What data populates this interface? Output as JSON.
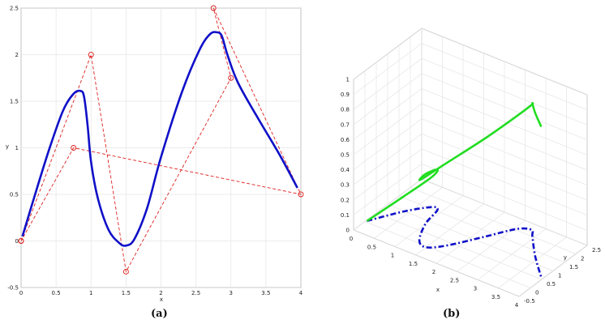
{
  "captions": {
    "a": "(a)",
    "b": "(b)"
  },
  "colors": {
    "curve": "#1010c8",
    "control": "#e02020",
    "green": "#22dd22",
    "grid": "#e4e4e4"
  },
  "chart_data": [
    {
      "type": "line",
      "panel": "a",
      "xlabel": "x",
      "ylabel": "y",
      "xlim": [
        0,
        4
      ],
      "ylim": [
        -0.5,
        2.5
      ],
      "xticks": [
        0,
        0.5,
        1,
        1.5,
        2,
        2.5,
        3,
        3.5,
        4
      ],
      "yticks": [
        -0.5,
        0,
        0.5,
        1,
        1.5,
        2,
        2.5
      ],
      "grid": true,
      "series": [
        {
          "style": "solid-blue",
          "x": [
            0.02,
            0.2,
            0.4,
            0.6,
            0.75,
            0.85,
            0.9,
            0.95,
            1.0,
            1.1,
            1.25,
            1.4,
            1.5,
            1.62,
            1.8,
            2.0,
            2.3,
            2.55,
            2.7,
            2.8,
            2.87,
            2.95,
            3.1,
            3.4,
            3.7,
            3.95
          ],
          "y": [
            0.05,
            0.5,
            0.98,
            1.4,
            1.58,
            1.61,
            1.55,
            1.25,
            0.85,
            0.45,
            0.12,
            -0.02,
            -0.05,
            0.02,
            0.35,
            0.9,
            1.6,
            2.05,
            2.22,
            2.24,
            2.2,
            2.0,
            1.7,
            1.3,
            0.92,
            0.57
          ]
        },
        {
          "style": "dashed-red-circles",
          "x": [
            0,
            1,
            1.5,
            3,
            2.75,
            4,
            0.75,
            0
          ],
          "y": [
            0,
            2,
            -0.33,
            1.75,
            2.5,
            0.5,
            1,
            0
          ]
        }
      ]
    },
    {
      "type": "line3d",
      "panel": "b",
      "xlabel": "x",
      "ylabel": "y",
      "xlim": [
        0,
        4
      ],
      "ylim": [
        -0.5,
        2.5
      ],
      "zlim": [
        0,
        1
      ],
      "xticks": [
        0,
        0.5,
        1,
        1.5,
        2,
        2.5,
        3,
        3.5,
        4
      ],
      "yticks": [
        -0.5,
        0,
        0.5,
        1,
        1.5,
        2,
        2.5
      ],
      "zticks": [
        0,
        0.1,
        0.2,
        0.3,
        0.4,
        0.5,
        0.6,
        0.7,
        0.8,
        0.9,
        1
      ],
      "grid": true,
      "series": [
        {
          "style": "solid-green",
          "x": [
            0.02,
            0.4,
            0.75,
            0.9,
            1.0,
            1.25,
            1.5,
            1.8,
            2.2,
            2.55,
            2.8,
            2.95,
            3.4,
            3.95
          ],
          "y": [
            0.05,
            0.98,
            1.58,
            1.55,
            0.85,
            0.12,
            -0.05,
            0.35,
            1.25,
            2.05,
            2.24,
            2.0,
            1.3,
            0.57
          ],
          "z": [
            0,
            0.1,
            0.2,
            0.27,
            0.33,
            0.4,
            0.47,
            0.55,
            0.65,
            0.75,
            0.83,
            0.88,
            0.95,
            1.0
          ]
        },
        {
          "style": "dashdot-blue",
          "x": [
            0.02,
            0.4,
            0.75,
            0.9,
            1.0,
            1.25,
            1.5,
            1.8,
            2.2,
            2.55,
            2.8,
            2.95,
            3.4,
            3.95
          ],
          "y": [
            0.05,
            0.98,
            1.58,
            1.55,
            0.85,
            0.12,
            -0.05,
            0.35,
            1.25,
            2.05,
            2.24,
            2.0,
            1.3,
            0.57
          ],
          "z": [
            0,
            0,
            0,
            0,
            0,
            0,
            0,
            0,
            0,
            0,
            0,
            0,
            0,
            0
          ]
        }
      ]
    }
  ]
}
